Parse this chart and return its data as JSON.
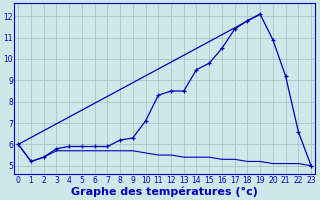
{
  "background_color": "#cce8e8",
  "grid_color": "#aacaca",
  "line_color": "#0000bb",
  "xlabel": "Graphe des températures (°c)",
  "xlabel_fontsize": 8,
  "ylim": [
    4.6,
    12.6
  ],
  "xlim": [
    -0.3,
    23.3
  ],
  "yticks": [
    5,
    6,
    7,
    8,
    9,
    10,
    11,
    12
  ],
  "xticks": [
    0,
    1,
    2,
    3,
    4,
    5,
    6,
    7,
    8,
    9,
    10,
    11,
    12,
    13,
    14,
    15,
    16,
    17,
    18,
    19,
    20,
    21,
    22,
    23
  ],
  "series_flat_x": [
    0,
    1,
    2,
    3,
    4,
    5,
    6,
    7,
    8,
    9,
    10,
    11,
    12,
    13,
    14,
    15,
    16,
    17,
    18,
    19,
    20,
    21,
    22,
    23
  ],
  "series_flat_y": [
    6.0,
    5.2,
    5.4,
    5.7,
    5.7,
    5.7,
    5.7,
    5.7,
    5.7,
    5.7,
    5.6,
    5.5,
    5.5,
    5.4,
    5.4,
    5.4,
    5.3,
    5.3,
    5.2,
    5.2,
    5.1,
    5.1,
    5.1,
    5.0
  ],
  "series_curve_x": [
    0,
    1,
    2,
    3,
    4,
    5,
    6,
    7,
    8,
    9,
    10,
    11,
    12,
    13,
    14,
    15,
    16,
    17,
    18,
    19,
    20,
    21,
    22,
    23
  ],
  "series_curve_y": [
    6.0,
    5.2,
    5.4,
    5.8,
    5.9,
    5.9,
    5.9,
    5.9,
    6.2,
    6.3,
    7.1,
    8.3,
    8.5,
    8.5,
    9.5,
    9.8,
    10.5,
    11.4,
    11.8,
    12.1,
    10.9,
    9.2,
    6.6,
    5.0
  ]
}
